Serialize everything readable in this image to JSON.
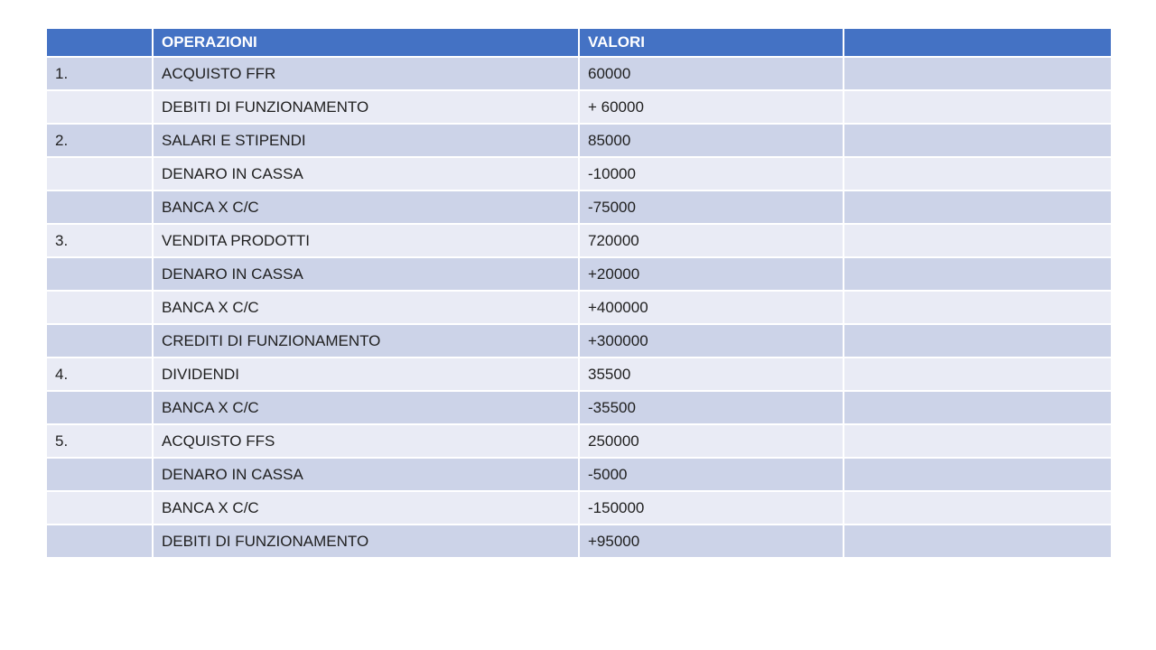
{
  "table": {
    "headers": [
      "",
      "OPERAZIONI",
      "VALORI",
      ""
    ],
    "rows": [
      {
        "num": "1.",
        "operazione": "ACQUISTO FFR",
        "valore": "60000"
      },
      {
        "num": "",
        "operazione": "DEBITI DI FUNZIONAMENTO",
        "valore": "+ 60000"
      },
      {
        "num": "2.",
        "operazione": "SALARI E STIPENDI",
        "valore": "85000"
      },
      {
        "num": "",
        "operazione": "DENARO IN CASSA",
        "valore": "-10000"
      },
      {
        "num": "",
        "operazione": "BANCA X C/C",
        "valore": "-75000"
      },
      {
        "num": "3.",
        "operazione": "VENDITA PRODOTTI",
        "valore": "720000"
      },
      {
        "num": "",
        "operazione": "DENARO IN CASSA",
        "valore": "+20000"
      },
      {
        "num": "",
        "operazione": "BANCA X C/C",
        "valore": "+400000"
      },
      {
        "num": "",
        "operazione": "CREDITI DI FUNZIONAMENTO",
        "valore": "+300000"
      },
      {
        "num": "4.",
        "operazione": "DIVIDENDI",
        "valore": "35500"
      },
      {
        "num": "",
        "operazione": "BANCA X C/C",
        "valore": "-35500"
      },
      {
        "num": "5.",
        "operazione": "ACQUISTO FFS",
        "valore": "250000"
      },
      {
        "num": "",
        "operazione": "DENARO IN CASSA",
        "valore": "-5000"
      },
      {
        "num": "",
        "operazione": "BANCA X C/C",
        "valore": "-150000"
      },
      {
        "num": "",
        "operazione": "DEBITI DI FUNZIONAMENTO",
        "valore": "+95000"
      }
    ],
    "colors": {
      "header_bg": "#4472C4",
      "header_text": "#FFFFFF",
      "band_dark": "#CCD3E8",
      "band_light": "#E9EBF5"
    }
  }
}
